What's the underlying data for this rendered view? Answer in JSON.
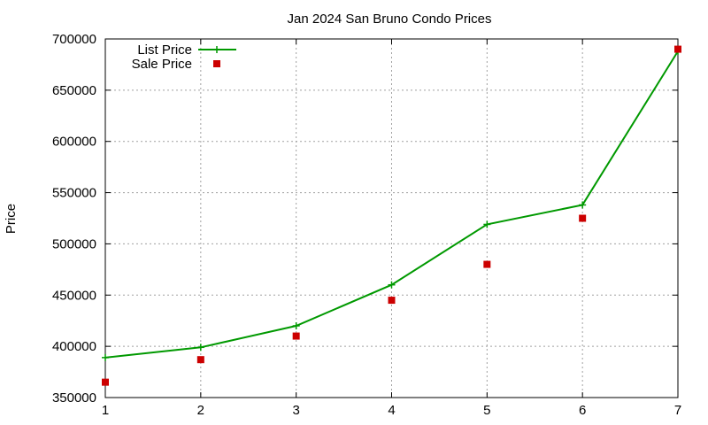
{
  "chart_data": {
    "type": "line",
    "title": "Jan 2024 San Bruno Condo Prices",
    "xlabel": "",
    "ylabel": "Price",
    "x": [
      1,
      2,
      3,
      4,
      5,
      6,
      7
    ],
    "xlim": [
      1,
      7
    ],
    "ylim": [
      350000,
      700000
    ],
    "xticks": [
      "1",
      "2",
      "3",
      "4",
      "5",
      "6",
      "7"
    ],
    "yticks": [
      "350000",
      "400000",
      "450000",
      "500000",
      "550000",
      "600000",
      "650000",
      "700000"
    ],
    "grid": true,
    "legend_position": "top-left",
    "series": [
      {
        "name": "List Price",
        "mark": "line-plus",
        "color": "#009900",
        "values": [
          389000,
          399000,
          420000,
          460000,
          519000,
          538000,
          688000
        ]
      },
      {
        "name": "Sale Price",
        "mark": "square",
        "color": "#cc0000",
        "values": [
          365000,
          387000,
          410000,
          445000,
          480000,
          525000,
          690000
        ]
      }
    ]
  }
}
